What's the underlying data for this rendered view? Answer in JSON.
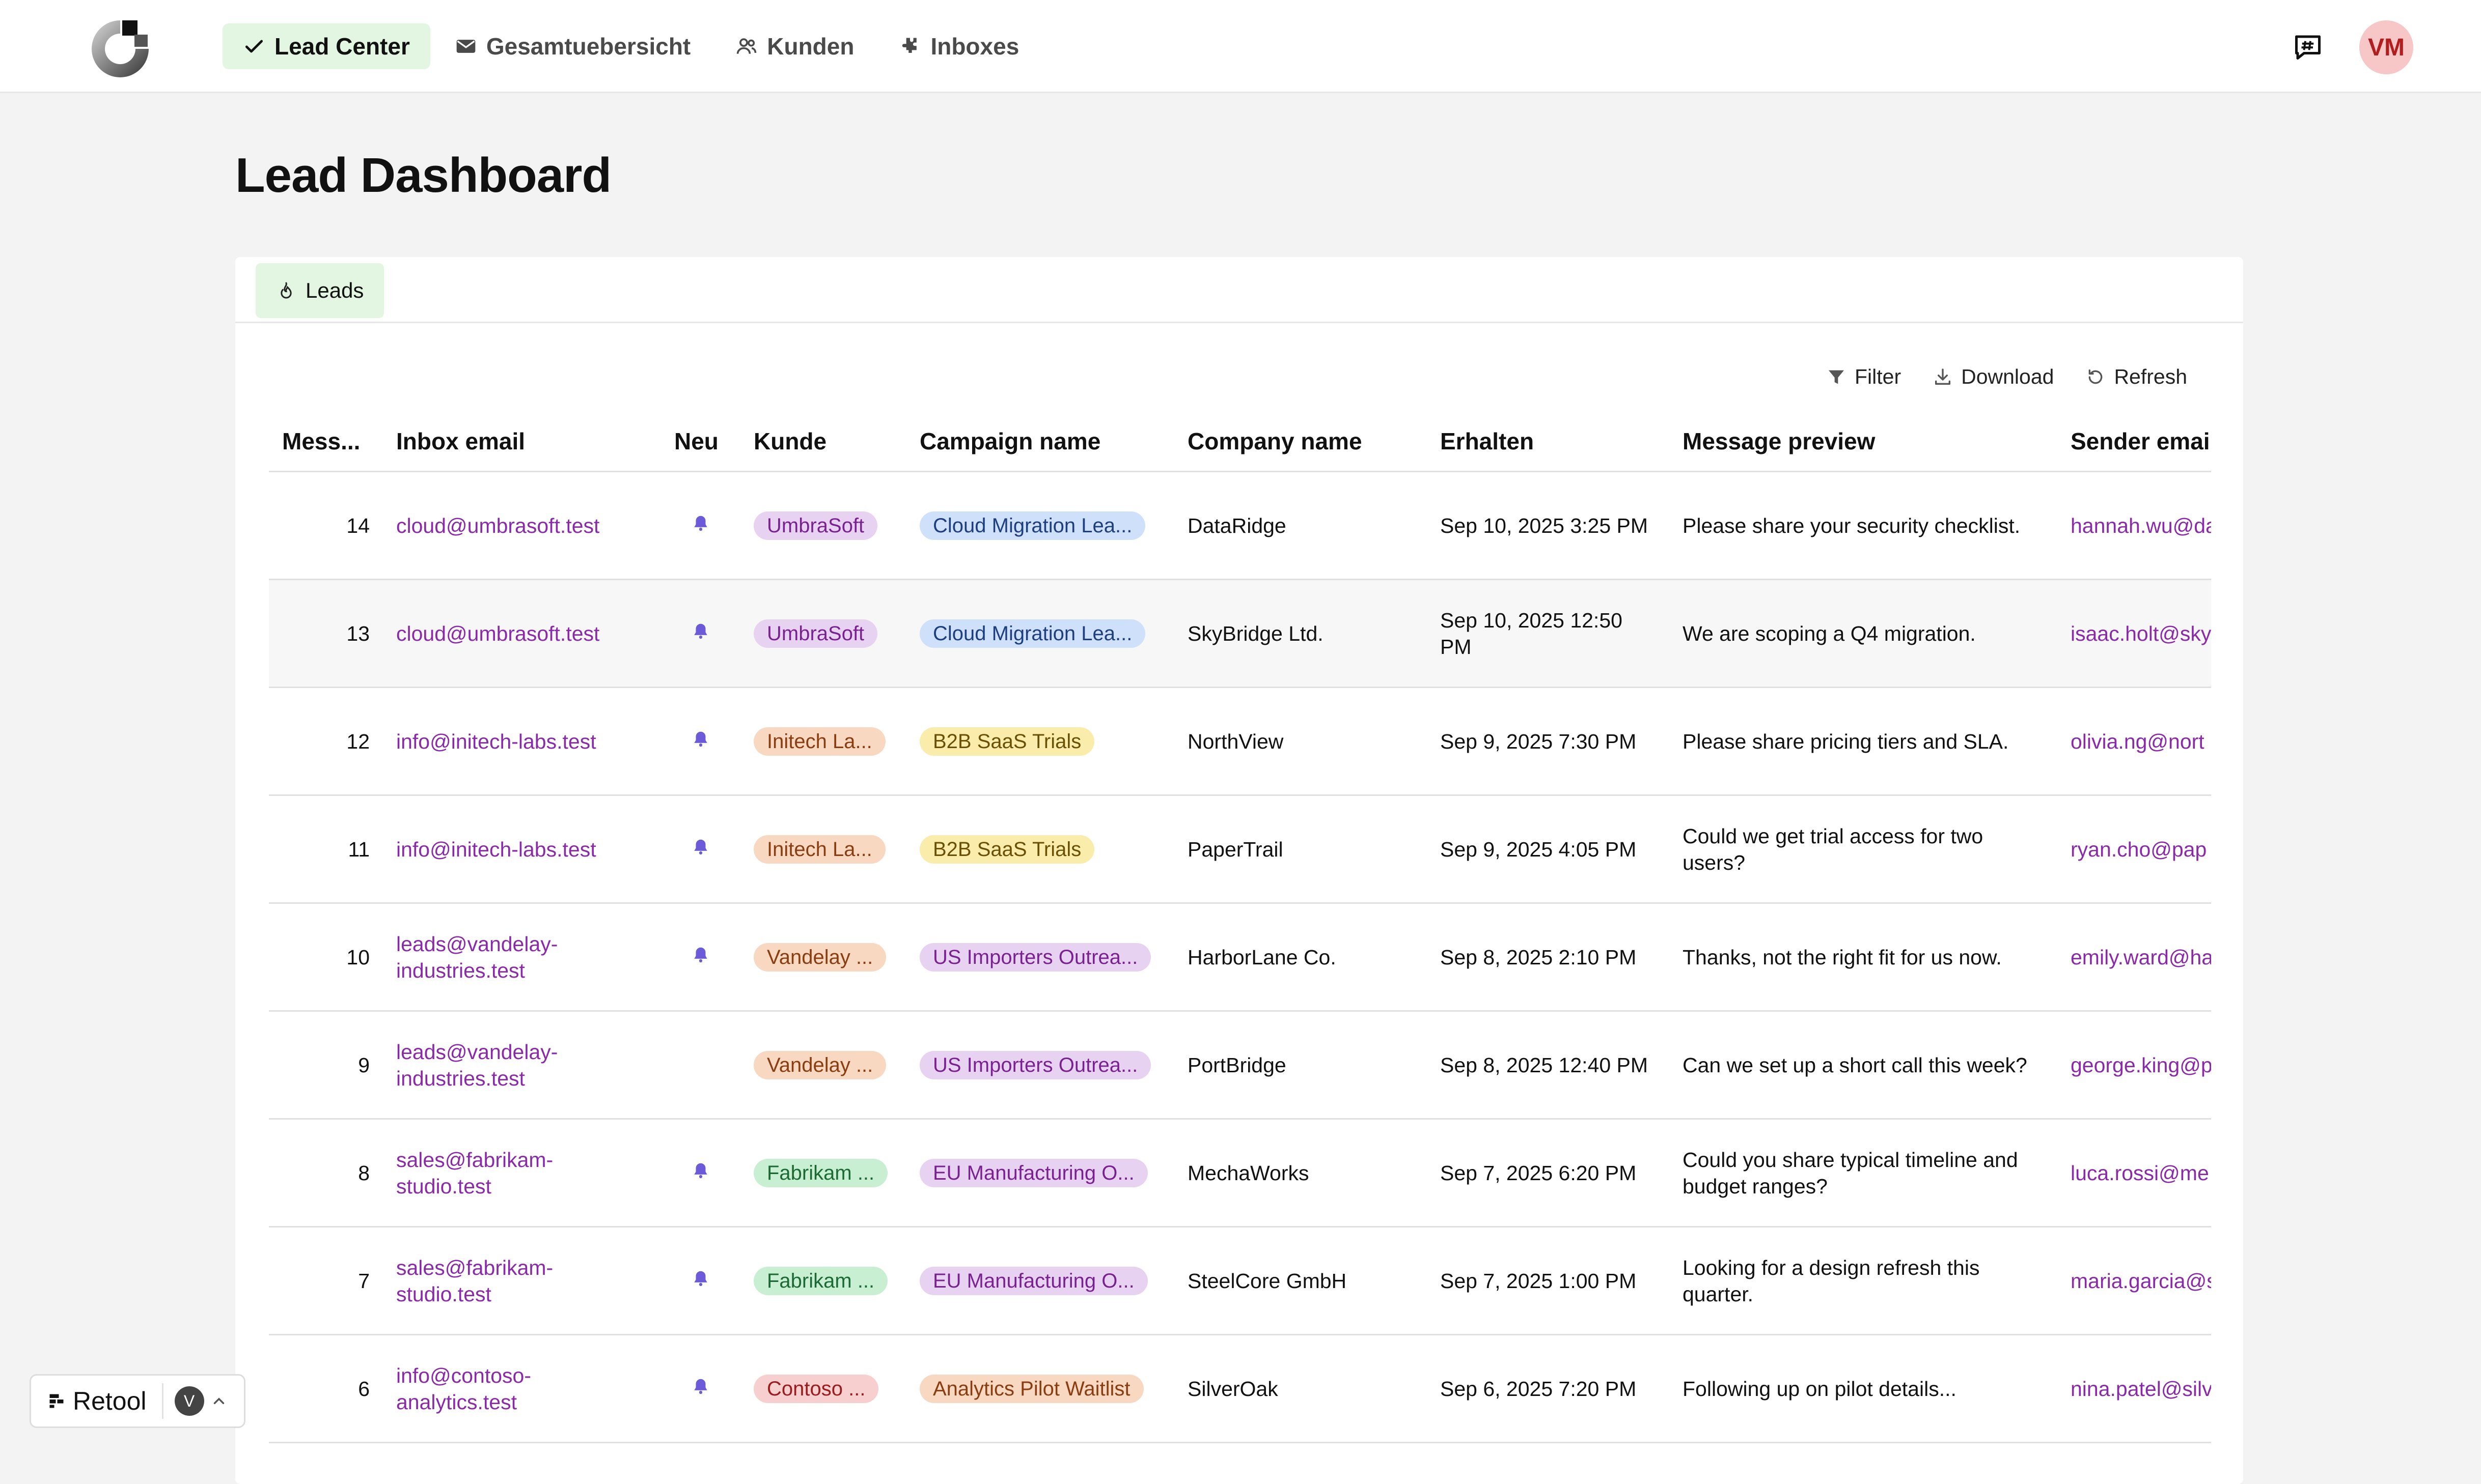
{
  "nav": {
    "items": [
      {
        "label": "Lead Center",
        "icon": "check-icon",
        "active": true
      },
      {
        "label": "Gesamtuebersicht",
        "icon": "mail-icon",
        "active": false
      },
      {
        "label": "Kunden",
        "icon": "users-icon",
        "active": false
      },
      {
        "label": "Inboxes",
        "icon": "puzzle-icon",
        "active": false
      }
    ],
    "avatar_initials": "VM"
  },
  "page": {
    "title": "Lead Dashboard",
    "tab_label": "Leads"
  },
  "toolbar": {
    "filter_label": "Filter",
    "download_label": "Download",
    "refresh_label": "Refresh"
  },
  "table": {
    "headers": [
      "Mess...",
      "Inbox email",
      "Neu",
      "Kunde",
      "Campaign name",
      "Company name",
      "Erhalten",
      "Message preview",
      "Sender email"
    ],
    "rows": [
      {
        "id": "14",
        "inbox": "cloud@umbrasoft.test",
        "neu": true,
        "kunde": "UmbraSoft",
        "kunde_color": "purple",
        "campaign": "Cloud Migration Lea...",
        "campaign_color": "blue",
        "company": "DataRidge",
        "received": "Sep 10, 2025 3:25 PM",
        "preview": "Please share your security checklist.",
        "sender": "hannah.wu@da"
      },
      {
        "id": "13",
        "inbox": "cloud@umbrasoft.test",
        "neu": true,
        "kunde": "UmbraSoft",
        "kunde_color": "purple",
        "campaign": "Cloud Migration Lea...",
        "campaign_color": "blue",
        "company": "SkyBridge Ltd.",
        "received": "Sep 10, 2025 12:50 PM",
        "preview": "We are scoping a Q4 migration.",
        "sender": "isaac.holt@sky"
      },
      {
        "id": "12",
        "inbox": "info@initech-labs.test",
        "neu": true,
        "kunde": "Initech La...",
        "kunde_color": "orange",
        "campaign": "B2B SaaS Trials",
        "campaign_color": "yellow",
        "company": "NorthView",
        "received": "Sep 9, 2025 7:30 PM",
        "preview": "Please share pricing tiers and SLA.",
        "sender": "olivia.ng@nort"
      },
      {
        "id": "11",
        "inbox": "info@initech-labs.test",
        "neu": true,
        "kunde": "Initech La...",
        "kunde_color": "orange",
        "campaign": "B2B SaaS Trials",
        "campaign_color": "yellow",
        "company": "PaperTrail",
        "received": "Sep 9, 2025 4:05 PM",
        "preview": "Could we get trial access for two users?",
        "sender": "ryan.cho@pap"
      },
      {
        "id": "10",
        "inbox": "leads@vandelay-industries.test",
        "neu": true,
        "kunde": "Vandelay ...",
        "kunde_color": "orange",
        "campaign": "US Importers Outrea...",
        "campaign_color": "purple",
        "company": "HarborLane Co.",
        "received": "Sep 8, 2025 2:10 PM",
        "preview": "Thanks, not the right fit for us now.",
        "sender": "emily.ward@ha"
      },
      {
        "id": "9",
        "inbox": "leads@vandelay-industries.test",
        "neu": false,
        "kunde": "Vandelay ...",
        "kunde_color": "orange",
        "campaign": "US Importers Outrea...",
        "campaign_color": "purple",
        "company": "PortBridge",
        "received": "Sep 8, 2025 12:40 PM",
        "preview": "Can we set up a short call this week?",
        "sender": "george.king@p"
      },
      {
        "id": "8",
        "inbox": "sales@fabrikam-studio.test",
        "neu": true,
        "kunde": "Fabrikam ...",
        "kunde_color": "green",
        "campaign": "EU Manufacturing O...",
        "campaign_color": "purple",
        "company": "MechaWorks",
        "received": "Sep 7, 2025 6:20 PM",
        "preview": "Could you share typical timeline and budget ranges?",
        "sender": "luca.rossi@me"
      },
      {
        "id": "7",
        "inbox": "sales@fabrikam-studio.test",
        "neu": true,
        "kunde": "Fabrikam ...",
        "kunde_color": "green",
        "campaign": "EU Manufacturing O...",
        "campaign_color": "purple",
        "company": "SteelCore GmbH",
        "received": "Sep 7, 2025 1:00 PM",
        "preview": "Looking for a design refresh this quarter.",
        "sender": "maria.garcia@s"
      },
      {
        "id": "6",
        "inbox": "info@contoso-analytics.test",
        "neu": true,
        "kunde": "Contoso ...",
        "kunde_color": "red",
        "campaign": "Analytics Pilot Waitlist",
        "campaign_color": "orange",
        "company": "SilverOak",
        "received": "Sep 6, 2025 7:20 PM",
        "preview": "Following up on pilot details...",
        "sender": "nina.patel@silv"
      }
    ]
  },
  "pill_colors": {
    "purple": {
      "bg": "#e8d2f2",
      "fg": "#7a2191"
    },
    "blue": {
      "bg": "#cfe0fa",
      "fg": "#1d3f80"
    },
    "orange": {
      "bg": "#f9d8c1",
      "fg": "#8a3d10"
    },
    "yellow": {
      "bg": "#faecaa",
      "fg": "#6a5005"
    },
    "green": {
      "bg": "#c9efd3",
      "fg": "#1b6a33"
    },
    "red": {
      "bg": "#f7cfcf",
      "fg": "#9a1c1c"
    }
  },
  "accent_colors": {
    "link": "#8a2aa8",
    "bell": "#6b5bd8",
    "active_nav": "#e3f6e2"
  },
  "retool": {
    "label": "Retool",
    "badge": "V"
  }
}
